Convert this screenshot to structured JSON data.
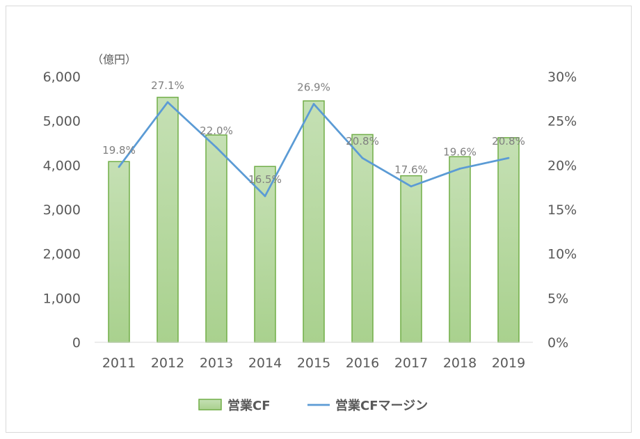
{
  "chart_data": {
    "type": "bar+line",
    "unit_label": "（億円）",
    "categories": [
      "2011",
      "2012",
      "2013",
      "2014",
      "2015",
      "2016",
      "2017",
      "2018",
      "2019"
    ],
    "series": [
      {
        "name": "営業CF",
        "type": "bar",
        "axis": "left",
        "values": [
          4080,
          5530,
          4680,
          3970,
          5450,
          4690,
          3760,
          4190,
          4620
        ],
        "color": "#a9d18e",
        "border_color": "#70ad47"
      },
      {
        "name": "営業CFマージン",
        "type": "line",
        "axis": "right",
        "values": [
          19.8,
          27.1,
          22.0,
          16.5,
          26.9,
          20.8,
          17.6,
          19.6,
          20.8
        ],
        "labels": [
          "19.8%",
          "27.1%",
          "22.0%",
          "16.5%",
          "26.9%",
          "20.8%",
          "17.6%",
          "19.6%",
          "20.8%"
        ],
        "color": "#5b9bd5"
      }
    ],
    "y_left": {
      "min": 0,
      "max": 6000,
      "ticks": [
        "0",
        "1,000",
        "2,000",
        "3,000",
        "4,000",
        "5,000",
        "6,000"
      ]
    },
    "y_right": {
      "min": 0,
      "max": 30,
      "ticks": [
        "0%",
        "5%",
        "10%",
        "15%",
        "20%",
        "25%",
        "30%"
      ]
    },
    "legend": {
      "position": "bottom",
      "items": [
        "営業CF",
        "営業CFマージン"
      ]
    },
    "grid": false
  }
}
